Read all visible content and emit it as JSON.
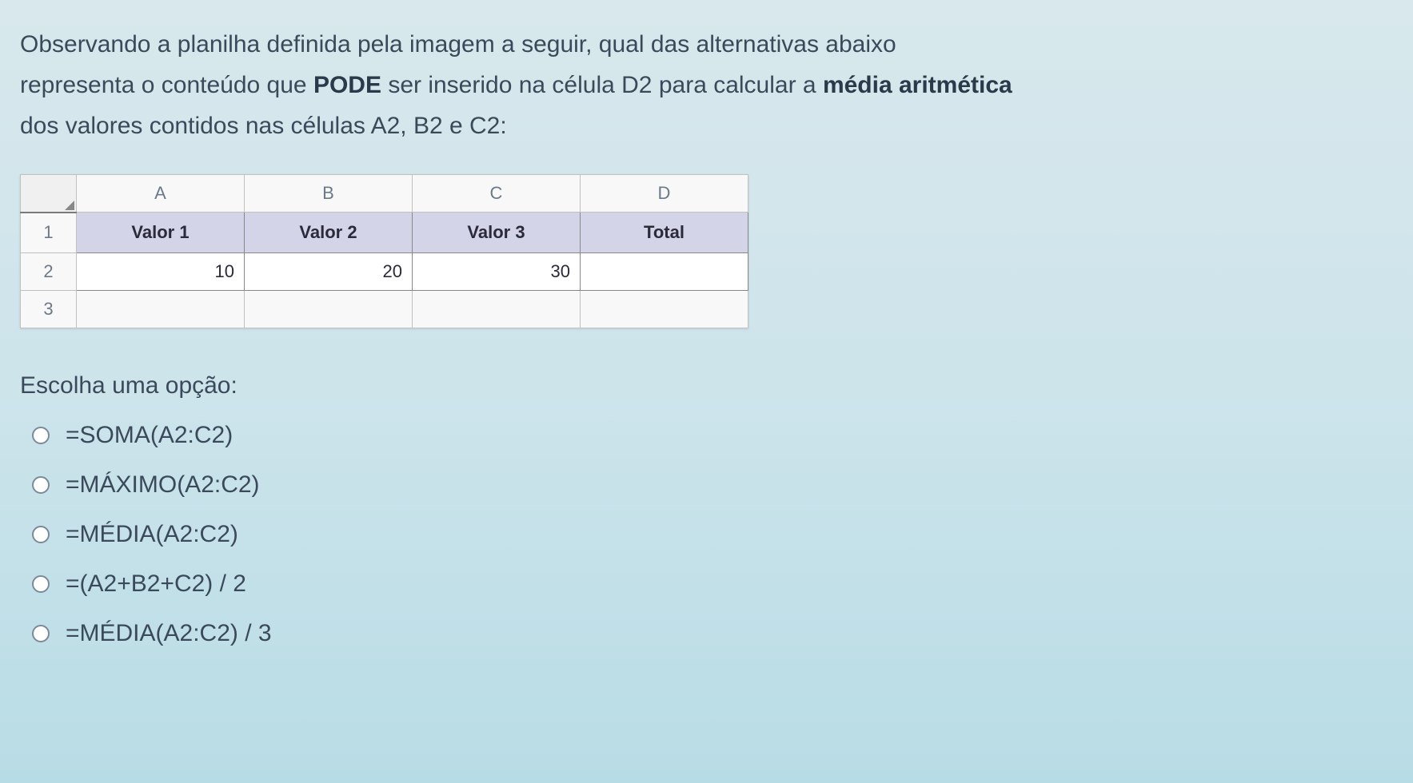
{
  "question": {
    "line1_part1": "Observando a planilha definida pela imagem a seguir, qual das alternativas abaixo",
    "line2_part1": "representa o conteúdo que ",
    "line2_bold": "PODE",
    "line2_part2": " ser inserido na célula D2 para calcular a ",
    "line2_bold2": "média aritmética",
    "line3": "dos valores contidos nas células A2, B2 e C2:"
  },
  "spreadsheet": {
    "columns": [
      "A",
      "B",
      "C",
      "D"
    ],
    "row_numbers": [
      "1",
      "2",
      "3"
    ],
    "headers": [
      "Valor 1",
      "Valor 2",
      "Valor 3",
      "Total"
    ],
    "values": [
      "10",
      "20",
      "30",
      ""
    ],
    "colors": {
      "header_bg": "#d4d4e8",
      "cell_bg": "#ffffff",
      "grid_header_bg": "#f8f8f8",
      "border": "#888888"
    }
  },
  "options_label": "Escolha uma opção:",
  "options": [
    "=SOMA(A2:C2)",
    "=MÁXIMO(A2:C2)",
    "=MÉDIA(A2:C2)",
    "=(A2+B2+C2) / 2",
    "=MÉDIA(A2:C2) / 3"
  ]
}
